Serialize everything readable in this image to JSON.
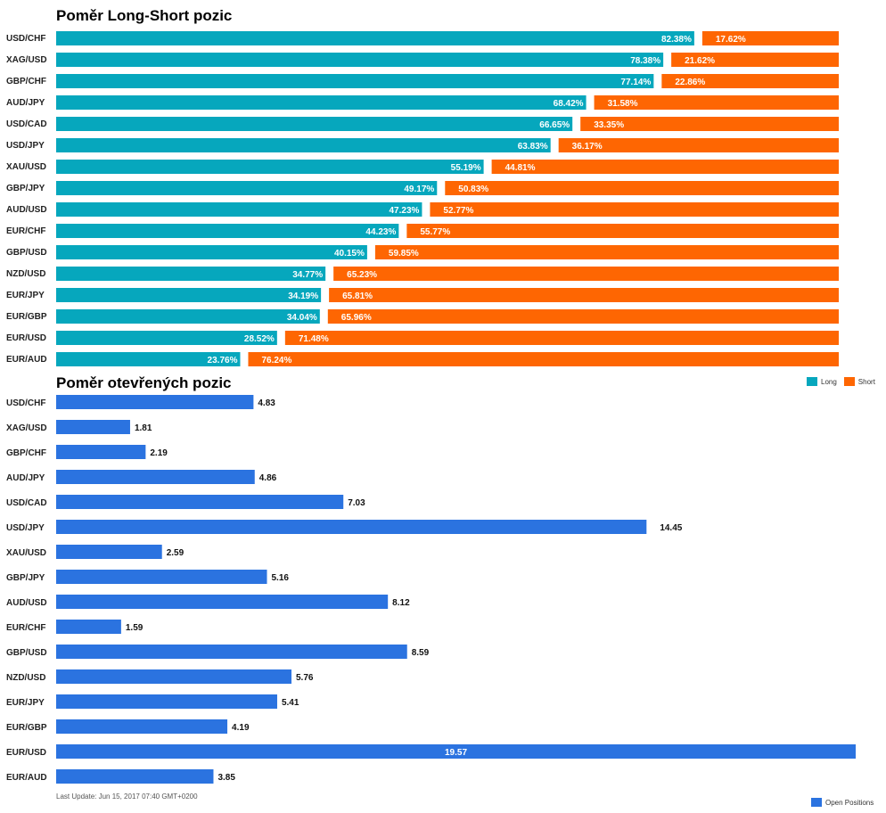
{
  "colors": {
    "long": "#06a7bd",
    "short": "#fe6602",
    "open": "#2b73e0"
  },
  "chart_data": [
    {
      "type": "bar",
      "title": "Poměr Long-Short pozic",
      "stacked": true,
      "orientation": "horizontal",
      "categories": [
        "USD/CHF",
        "XAG/USD",
        "GBP/CHF",
        "AUD/JPY",
        "USD/CAD",
        "USD/JPY",
        "XAU/USD",
        "GBP/JPY",
        "AUD/USD",
        "EUR/CHF",
        "GBP/USD",
        "NZD/USD",
        "EUR/JPY",
        "EUR/GBP",
        "EUR/USD",
        "EUR/AUD"
      ],
      "series": [
        {
          "name": "Long",
          "values": [
            82.38,
            78.38,
            77.14,
            68.42,
            66.65,
            63.83,
            55.19,
            49.17,
            47.23,
            44.23,
            40.15,
            34.77,
            34.19,
            34.04,
            28.52,
            23.76
          ]
        },
        {
          "name": "Short",
          "values": [
            17.62,
            21.62,
            22.86,
            31.58,
            33.35,
            36.17,
            44.81,
            50.83,
            52.77,
            55.77,
            59.85,
            65.23,
            65.81,
            65.96,
            71.48,
            76.24
          ]
        }
      ],
      "labels": {
        "long": [
          "82.38%",
          "78.38%",
          "77.14%",
          "68.42%",
          "66.65%",
          "63.83%",
          "55.19%",
          "49.17%",
          "47.23%",
          "44.23%",
          "40.15%",
          "34.77%",
          "34.19%",
          "34.04%",
          "28.52%",
          "23.76%"
        ],
        "short": [
          "17.62%",
          "21.62%",
          "22.86%",
          "31.58%",
          "33.35%",
          "36.17%",
          "44.81%",
          "50.83%",
          "52.77%",
          "55.77%",
          "59.85%",
          "65.23%",
          "65.81%",
          "65.96%",
          "71.48%",
          "76.24%"
        ]
      },
      "xlim": [
        0,
        100
      ],
      "legend": "bottom-right"
    },
    {
      "type": "bar",
      "title": "Poměr otevřených pozic",
      "orientation": "horizontal",
      "categories": [
        "USD/CHF",
        "XAG/USD",
        "GBP/CHF",
        "AUD/JPY",
        "USD/CAD",
        "USD/JPY",
        "XAU/USD",
        "GBP/JPY",
        "AUD/USD",
        "EUR/CHF",
        "GBP/USD",
        "NZD/USD",
        "EUR/JPY",
        "EUR/GBP",
        "EUR/USD",
        "EUR/AUD"
      ],
      "series": [
        {
          "name": "Open Positions",
          "values": [
            4.83,
            1.81,
            2.19,
            4.86,
            7.03,
            14.45,
            2.59,
            5.16,
            8.12,
            1.59,
            8.59,
            5.76,
            5.41,
            4.19,
            19.57,
            3.85
          ]
        }
      ],
      "labels": [
        "4.83",
        "1.81",
        "2.19",
        "4.86",
        "7.03",
        "14.45",
        "2.59",
        "5.16",
        "8.12",
        "1.59",
        "8.59",
        "5.76",
        "5.41",
        "4.19",
        "19.57",
        "3.85"
      ],
      "xlim": [
        0,
        19.57
      ],
      "legend": "bottom-right"
    }
  ],
  "legend1": {
    "long_label": "Long",
    "short_label": "Short"
  },
  "legend2": {
    "open_label": "Open Positions"
  },
  "footer": {
    "last_update": "Last Update: Jun 15, 2017 07:40 GMT+0200"
  }
}
